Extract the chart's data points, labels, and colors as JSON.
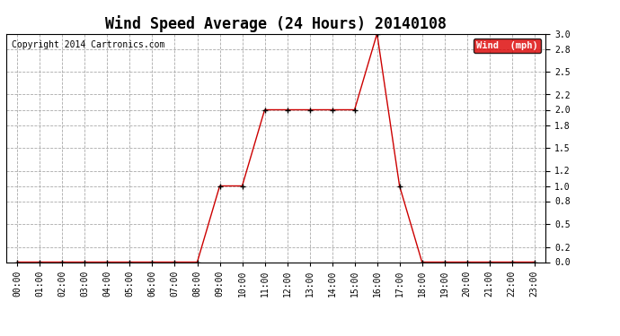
{
  "title": "Wind Speed Average (24 Hours) 20140108",
  "copyright": "Copyright 2014 Cartronics.com",
  "legend_label": "Wind  (mph)",
  "background_color": "#ffffff",
  "plot_bg_color": "#ffffff",
  "line_color": "#cc0000",
  "marker_color": "#000000",
  "legend_bg": "#dd0000",
  "legend_text_color": "#ffffff",
  "ylim": [
    0.0,
    3.0
  ],
  "ylabel_ticks": [
    0.0,
    0.2,
    0.5,
    0.8,
    1.0,
    1.2,
    1.5,
    1.8,
    2.0,
    2.2,
    2.5,
    2.8,
    3.0
  ],
  "hours": [
    "00:00",
    "01:00",
    "02:00",
    "03:00",
    "04:00",
    "05:00",
    "06:00",
    "07:00",
    "08:00",
    "09:00",
    "10:00",
    "11:00",
    "12:00",
    "13:00",
    "14:00",
    "15:00",
    "16:00",
    "17:00",
    "18:00",
    "19:00",
    "20:00",
    "21:00",
    "22:00",
    "23:00"
  ],
  "wind_values": [
    0.0,
    0.0,
    0.0,
    0.0,
    0.0,
    0.0,
    0.0,
    0.0,
    0.0,
    1.0,
    1.0,
    2.0,
    2.0,
    2.0,
    2.0,
    2.0,
    3.0,
    1.0,
    0.0,
    0.0,
    0.0,
    0.0,
    0.0,
    0.0
  ],
  "title_fontsize": 12,
  "tick_fontsize": 7,
  "copyright_fontsize": 7
}
